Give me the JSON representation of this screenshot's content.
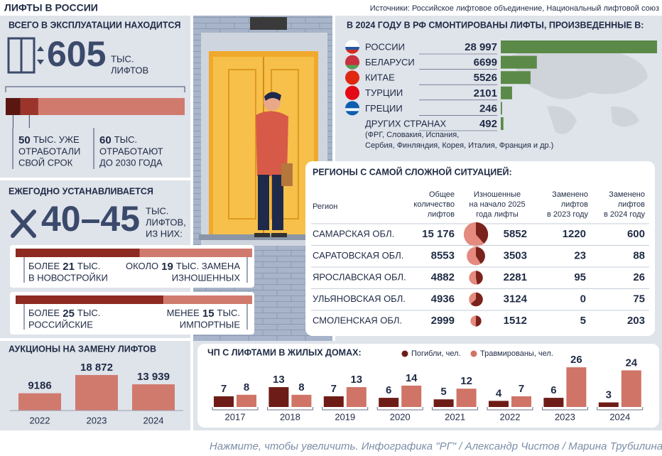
{
  "header": {
    "title": "ЛИФТЫ В РОССИИ",
    "sources": "Источники: Российское лифтовое объединение, Национальный лифтовой союз"
  },
  "in_operation": {
    "title": "ВСЕГО В ЭКСПЛУАТАЦИИ НАХОДИТСЯ",
    "total": 605,
    "unit": "ТЫС.",
    "unit_note": "ЛИФТОВ",
    "color": "#d07a6e",
    "segments": [
      {
        "value": 50,
        "lines": [
          "ТЫС. УЖЕ",
          "ОТРАБОТАЛИ",
          "СВОЙ СРОК"
        ],
        "color": "#5a1712"
      },
      {
        "value": 60,
        "lines": [
          "ТЫС.",
          "ОТРАБОТАЮТ",
          "ДО 2030 ГОДА"
        ],
        "color": "#9b352c"
      }
    ]
  },
  "annual": {
    "title": "ЕЖЕГОДНО УСТАНАВЛИВАЕТСЯ",
    "range": "40–45",
    "unit_lines": [
      "ТЫС.",
      "ЛИФТОВ,",
      "ИЗ НИХ:"
    ],
    "colors": [
      "#8e2a22",
      "#d07a6e"
    ],
    "splits": [
      [
        {
          "prefix": "БОЛЕЕ",
          "value": 21,
          "unit": "ТЫС.",
          "label": "В НОВОСТРОЙКИ"
        },
        {
          "prefix": "ОКОЛО",
          "value": 19,
          "unit": "ТЫС. ЗАМЕНА",
          "label": "ИЗНОШЕННЫХ"
        }
      ],
      [
        {
          "prefix": "БОЛЕЕ",
          "value": 25,
          "unit": "ТЫС.",
          "label": "РОССИЙСКИЕ"
        },
        {
          "prefix": "МЕНЕЕ",
          "value": 15,
          "unit": "ТЫС.",
          "label": "ИМПОРТНЫЕ"
        }
      ]
    ]
  },
  "auctions": {
    "title": "АУКЦИОНЫ НА ЗАМЕНУ ЛИФТОВ",
    "categories": [
      "2022",
      "2023",
      "2024"
    ],
    "values": [
      9186,
      18872,
      13939
    ],
    "value_labels": [
      "9186",
      "18 872",
      "13 939"
    ],
    "color": "#d07a6e"
  },
  "countries": {
    "title": "В 2024 ГОДУ В РФ СМОНТИРОВАНЫ ЛИФТЫ, ПРОИЗВЕДЕННЫЕ В:",
    "color": "#5b8a48",
    "rows": [
      {
        "name": "РОССИИ",
        "value": 28997,
        "value_label": "28 997"
      },
      {
        "name": "БЕЛАРУСИ",
        "value": 6699
      },
      {
        "name": "КИТАЕ",
        "value": 5526
      },
      {
        "name": "ТУРЦИИ",
        "value": 2101
      },
      {
        "name": "ГРЕЦИИ",
        "value": 246
      },
      {
        "name": "ДРУГИХ СТРАНАХ",
        "value": 492
      }
    ],
    "note_lines": [
      "(ФРГ, Словакия, Испания,",
      "Сербия, Финляндия, Корея, Италия, Франция и др.)"
    ]
  },
  "regions": {
    "title": "РЕГИОНЫ С САМОЙ СЛОЖНОЙ СИТУАЦИЕЙ:",
    "columns": [
      [
        "Регион"
      ],
      [
        "Общее",
        "количество",
        "лифтов"
      ],
      [
        "Изношенные",
        "на начало 2025",
        "года лифты"
      ],
      [
        "Заменено",
        "лифтов",
        "в 2023 году"
      ],
      [
        "Заменено",
        "лифтов",
        "в 2024 году"
      ]
    ],
    "rows": [
      {
        "region": "САМАРСКАЯ ОБЛ.",
        "total": 15176,
        "total_label": "15 176",
        "worn": 5852,
        "replaced_2023": 1220,
        "replaced_2024": 600
      },
      {
        "region": "САРАТОВСКАЯ ОБЛ.",
        "total": 8553,
        "worn": 3503,
        "replaced_2023": 23,
        "replaced_2024": 88
      },
      {
        "region": "ЯРОСЛАВСКАЯ ОБЛ.",
        "total": 4882,
        "worn": 2281,
        "replaced_2023": 95,
        "replaced_2024": 26
      },
      {
        "region": "УЛЬЯНОВСКАЯ ОБЛ.",
        "total": 4936,
        "worn": 3124,
        "replaced_2023": 0,
        "replaced_2024": 75
      },
      {
        "region": "СМОЛЕНСКАЯ ОБЛ.",
        "total": 2999,
        "worn": 1512,
        "replaced_2023": 5,
        "replaced_2024": 203
      }
    ]
  },
  "incidents": {
    "title": "ЧП С ЛИФТАМИ В ЖИЛЫХ ДОМАХ:",
    "categories": [
      "2017",
      "2018",
      "2019",
      "2020",
      "2021",
      "2022",
      "2023",
      "2024"
    ],
    "series": [
      {
        "name": "Погибли, чел.",
        "color": "#6e1c17",
        "values": [
          7,
          13,
          7,
          6,
          5,
          4,
          6,
          3
        ]
      },
      {
        "name": "Травмированы, чел.",
        "color": "#cf7466",
        "values": [
          8,
          8,
          13,
          14,
          12,
          7,
          26,
          24
        ]
      }
    ]
  },
  "footer": "Нажмите, чтобы увеличить. Инфографика \"РГ\" / Александр Чистов / Марина Трубилина"
}
